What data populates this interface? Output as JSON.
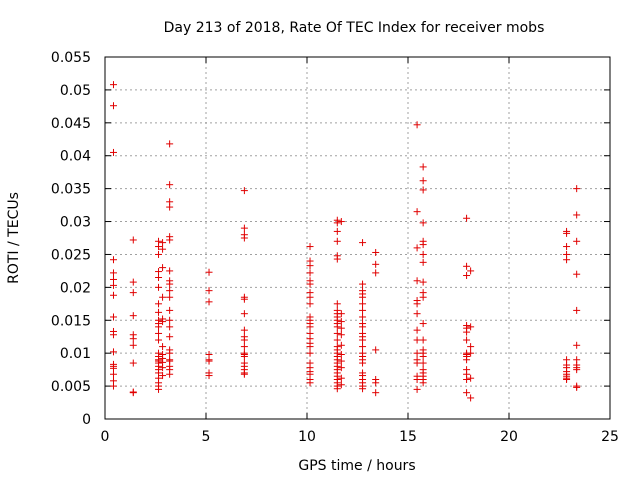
{
  "chart_data": {
    "type": "scatter",
    "title": "Day 213 of 2018, Rate Of TEC Index for receiver mobs",
    "xlabel": "GPS time / hours",
    "ylabel": "ROTI / TECUs",
    "xlim": [
      0,
      25
    ],
    "ylim": [
      0,
      0.055
    ],
    "x_ticks": [
      0,
      5,
      10,
      15,
      20,
      25
    ],
    "x_tick_labels": [
      "0",
      "5",
      "10",
      "15",
      "20",
      "25"
    ],
    "y_ticks": [
      0,
      0.005,
      0.01,
      0.015,
      0.02,
      0.025,
      0.03,
      0.035,
      0.04,
      0.045,
      0.05,
      0.055
    ],
    "y_tick_labels": [
      "0",
      "0.005",
      "0.01",
      "0.015",
      "0.02",
      "0.025",
      "0.03",
      "0.035",
      "0.04",
      "0.045",
      "0.05",
      "0.055"
    ],
    "grid": true,
    "marker": "+",
    "color": "#e00000",
    "series": [
      {
        "name": "ROTI",
        "points": [
          [
            0.42,
            0.0508
          ],
          [
            0.42,
            0.0476
          ],
          [
            0.42,
            0.0405
          ],
          [
            0.42,
            0.0242
          ],
          [
            0.42,
            0.0222
          ],
          [
            0.42,
            0.0212
          ],
          [
            0.42,
            0.0203
          ],
          [
            0.42,
            0.0188
          ],
          [
            0.42,
            0.0155
          ],
          [
            0.42,
            0.0133
          ],
          [
            0.42,
            0.0128
          ],
          [
            0.42,
            0.0102
          ],
          [
            0.42,
            0.0083
          ],
          [
            0.42,
            0.008
          ],
          [
            0.42,
            0.0077
          ],
          [
            0.42,
            0.0068
          ],
          [
            0.42,
            0.0058
          ],
          [
            0.42,
            0.005
          ],
          [
            1.4,
            0.0272
          ],
          [
            1.4,
            0.0208
          ],
          [
            1.4,
            0.0192
          ],
          [
            1.4,
            0.0157
          ],
          [
            1.4,
            0.0128
          ],
          [
            1.4,
            0.0122
          ],
          [
            1.4,
            0.0112
          ],
          [
            1.4,
            0.0085
          ],
          [
            1.4,
            0.0041
          ],
          [
            1.4,
            0.004
          ],
          [
            2.65,
            0.027
          ],
          [
            2.65,
            0.0262
          ],
          [
            2.65,
            0.025
          ],
          [
            2.65,
            0.0224
          ],
          [
            2.65,
            0.0215
          ],
          [
            2.65,
            0.02
          ],
          [
            2.65,
            0.0175
          ],
          [
            2.65,
            0.0162
          ],
          [
            2.65,
            0.015
          ],
          [
            2.65,
            0.0145
          ],
          [
            2.65,
            0.014
          ],
          [
            2.65,
            0.013
          ],
          [
            2.65,
            0.012
          ],
          [
            2.65,
            0.01
          ],
          [
            2.65,
            0.0095
          ],
          [
            2.65,
            0.009
          ],
          [
            2.65,
            0.0088
          ],
          [
            2.65,
            0.0085
          ],
          [
            2.65,
            0.008
          ],
          [
            2.65,
            0.0075
          ],
          [
            2.65,
            0.007
          ],
          [
            2.65,
            0.0062
          ],
          [
            2.65,
            0.0055
          ],
          [
            2.65,
            0.005
          ],
          [
            2.65,
            0.0045
          ],
          [
            2.85,
            0.0268
          ],
          [
            2.85,
            0.0258
          ],
          [
            2.85,
            0.023
          ],
          [
            2.85,
            0.0185
          ],
          [
            2.85,
            0.0152
          ],
          [
            2.85,
            0.0148
          ],
          [
            2.85,
            0.011
          ],
          [
            2.85,
            0.0098
          ],
          [
            2.85,
            0.0092
          ],
          [
            2.85,
            0.0086
          ],
          [
            2.85,
            0.0078
          ],
          [
            2.85,
            0.0066
          ],
          [
            3.2,
            0.0418
          ],
          [
            3.2,
            0.0356
          ],
          [
            3.2,
            0.033
          ],
          [
            3.2,
            0.0322
          ],
          [
            3.2,
            0.0277
          ],
          [
            3.2,
            0.0272
          ],
          [
            3.2,
            0.0225
          ],
          [
            3.2,
            0.021
          ],
          [
            3.2,
            0.0205
          ],
          [
            3.2,
            0.0195
          ],
          [
            3.2,
            0.0185
          ],
          [
            3.2,
            0.0165
          ],
          [
            3.2,
            0.015
          ],
          [
            3.2,
            0.014
          ],
          [
            3.2,
            0.0125
          ],
          [
            3.2,
            0.0105
          ],
          [
            3.2,
            0.01
          ],
          [
            3.2,
            0.009
          ],
          [
            3.2,
            0.0088
          ],
          [
            3.2,
            0.008
          ],
          [
            3.2,
            0.0075
          ],
          [
            3.2,
            0.0068
          ],
          [
            5.15,
            0.0223
          ],
          [
            5.15,
            0.0195
          ],
          [
            5.15,
            0.0178
          ],
          [
            5.15,
            0.0098
          ],
          [
            5.15,
            0.009
          ],
          [
            5.15,
            0.0088
          ],
          [
            5.15,
            0.007
          ],
          [
            5.15,
            0.0066
          ],
          [
            6.9,
            0.0347
          ],
          [
            6.9,
            0.029
          ],
          [
            6.9,
            0.028
          ],
          [
            6.9,
            0.0275
          ],
          [
            6.9,
            0.0185
          ],
          [
            6.9,
            0.0182
          ],
          [
            6.9,
            0.016
          ],
          [
            6.9,
            0.0135
          ],
          [
            6.9,
            0.0125
          ],
          [
            6.9,
            0.012
          ],
          [
            6.9,
            0.011
          ],
          [
            6.9,
            0.01
          ],
          [
            6.9,
            0.0098
          ],
          [
            6.9,
            0.0095
          ],
          [
            6.9,
            0.0085
          ],
          [
            6.9,
            0.008
          ],
          [
            6.9,
            0.0075
          ],
          [
            6.9,
            0.007
          ],
          [
            6.9,
            0.0068
          ],
          [
            10.15,
            0.0262
          ],
          [
            10.15,
            0.024
          ],
          [
            10.15,
            0.0233
          ],
          [
            10.15,
            0.0222
          ],
          [
            10.15,
            0.021
          ],
          [
            10.15,
            0.0205
          ],
          [
            10.15,
            0.0192
          ],
          [
            10.15,
            0.0185
          ],
          [
            10.15,
            0.0175
          ],
          [
            10.15,
            0.0155
          ],
          [
            10.15,
            0.015
          ],
          [
            10.15,
            0.0145
          ],
          [
            10.15,
            0.014
          ],
          [
            10.15,
            0.013
          ],
          [
            10.15,
            0.0122
          ],
          [
            10.15,
            0.0115
          ],
          [
            10.15,
            0.011
          ],
          [
            10.15,
            0.01
          ],
          [
            10.15,
            0.0085
          ],
          [
            10.15,
            0.0078
          ],
          [
            10.15,
            0.0072
          ],
          [
            10.15,
            0.0068
          ],
          [
            10.15,
            0.006
          ],
          [
            10.15,
            0.0055
          ],
          [
            11.5,
            0.0302
          ],
          [
            11.5,
            0.0298
          ],
          [
            11.5,
            0.0285
          ],
          [
            11.5,
            0.027
          ],
          [
            11.5,
            0.0248
          ],
          [
            11.5,
            0.0243
          ],
          [
            11.5,
            0.0175
          ],
          [
            11.5,
            0.0165
          ],
          [
            11.5,
            0.016
          ],
          [
            11.5,
            0.0155
          ],
          [
            11.5,
            0.015
          ],
          [
            11.5,
            0.0145
          ],
          [
            11.5,
            0.014
          ],
          [
            11.5,
            0.013
          ],
          [
            11.5,
            0.012
          ],
          [
            11.5,
            0.011
          ],
          [
            11.5,
            0.0105
          ],
          [
            11.5,
            0.01
          ],
          [
            11.5,
            0.0095
          ],
          [
            11.5,
            0.009
          ],
          [
            11.5,
            0.0085
          ],
          [
            11.5,
            0.008
          ],
          [
            11.5,
            0.0075
          ],
          [
            11.5,
            0.007
          ],
          [
            11.5,
            0.0065
          ],
          [
            11.5,
            0.006
          ],
          [
            11.5,
            0.0055
          ],
          [
            11.5,
            0.005
          ],
          [
            11.5,
            0.0046
          ],
          [
            11.7,
            0.03
          ],
          [
            11.7,
            0.016
          ],
          [
            11.7,
            0.0148
          ],
          [
            11.7,
            0.0138
          ],
          [
            11.7,
            0.0128
          ],
          [
            11.7,
            0.0112
          ],
          [
            11.7,
            0.0098
          ],
          [
            11.7,
            0.0088
          ],
          [
            11.7,
            0.0078
          ],
          [
            11.7,
            0.0062
          ],
          [
            11.7,
            0.0052
          ],
          [
            12.75,
            0.0268
          ],
          [
            12.75,
            0.0205
          ],
          [
            12.75,
            0.0195
          ],
          [
            12.75,
            0.019
          ],
          [
            12.75,
            0.0185
          ],
          [
            12.75,
            0.0175
          ],
          [
            12.75,
            0.0165
          ],
          [
            12.75,
            0.0155
          ],
          [
            12.75,
            0.0145
          ],
          [
            12.75,
            0.014
          ],
          [
            12.75,
            0.013
          ],
          [
            12.75,
            0.0125
          ],
          [
            12.75,
            0.012
          ],
          [
            12.75,
            0.011
          ],
          [
            12.75,
            0.01
          ],
          [
            12.75,
            0.0095
          ],
          [
            12.75,
            0.009
          ],
          [
            12.75,
            0.0085
          ],
          [
            12.75,
            0.007
          ],
          [
            12.75,
            0.0066
          ],
          [
            12.75,
            0.006
          ],
          [
            12.75,
            0.0055
          ],
          [
            12.75,
            0.005
          ],
          [
            12.75,
            0.0046
          ],
          [
            13.4,
            0.0253
          ],
          [
            13.4,
            0.0235
          ],
          [
            13.4,
            0.0222
          ],
          [
            13.4,
            0.0105
          ],
          [
            13.4,
            0.006
          ],
          [
            13.4,
            0.0055
          ],
          [
            13.4,
            0.004
          ],
          [
            15.45,
            0.0447
          ],
          [
            15.45,
            0.0315
          ],
          [
            15.45,
            0.026
          ],
          [
            15.45,
            0.021
          ],
          [
            15.45,
            0.018
          ],
          [
            15.45,
            0.0175
          ],
          [
            15.45,
            0.016
          ],
          [
            15.45,
            0.0135
          ],
          [
            15.45,
            0.012
          ],
          [
            15.45,
            0.01
          ],
          [
            15.45,
            0.009
          ],
          [
            15.45,
            0.0085
          ],
          [
            15.45,
            0.0065
          ],
          [
            15.45,
            0.006
          ],
          [
            15.45,
            0.0045
          ],
          [
            15.75,
            0.0383
          ],
          [
            15.75,
            0.0362
          ],
          [
            15.75,
            0.0348
          ],
          [
            15.75,
            0.0298
          ],
          [
            15.75,
            0.027
          ],
          [
            15.75,
            0.0265
          ],
          [
            15.75,
            0.025
          ],
          [
            15.75,
            0.0238
          ],
          [
            15.75,
            0.0208
          ],
          [
            15.75,
            0.0192
          ],
          [
            15.75,
            0.0185
          ],
          [
            15.75,
            0.0145
          ],
          [
            15.75,
            0.012
          ],
          [
            15.75,
            0.0105
          ],
          [
            15.75,
            0.01
          ],
          [
            15.75,
            0.0095
          ],
          [
            15.75,
            0.0085
          ],
          [
            15.75,
            0.0075
          ],
          [
            15.75,
            0.007
          ],
          [
            15.75,
            0.0065
          ],
          [
            15.75,
            0.006
          ],
          [
            15.75,
            0.0055
          ],
          [
            17.9,
            0.0305
          ],
          [
            17.9,
            0.0232
          ],
          [
            17.9,
            0.0218
          ],
          [
            17.9,
            0.0142
          ],
          [
            17.9,
            0.0138
          ],
          [
            17.9,
            0.0132
          ],
          [
            17.9,
            0.012
          ],
          [
            17.9,
            0.01
          ],
          [
            17.9,
            0.0098
          ],
          [
            17.9,
            0.0095
          ],
          [
            17.9,
            0.009
          ],
          [
            17.9,
            0.0075
          ],
          [
            17.9,
            0.0068
          ],
          [
            17.9,
            0.006
          ],
          [
            17.9,
            0.004
          ],
          [
            18.1,
            0.0225
          ],
          [
            18.1,
            0.014
          ],
          [
            18.1,
            0.011
          ],
          [
            18.1,
            0.01
          ],
          [
            18.1,
            0.0062
          ],
          [
            18.1,
            0.0032
          ],
          [
            22.85,
            0.0285
          ],
          [
            22.85,
            0.0282
          ],
          [
            22.85,
            0.0262
          ],
          [
            22.85,
            0.025
          ],
          [
            22.85,
            0.0242
          ],
          [
            22.85,
            0.009
          ],
          [
            22.85,
            0.0082
          ],
          [
            22.85,
            0.0078
          ],
          [
            22.85,
            0.0072
          ],
          [
            22.85,
            0.0068
          ],
          [
            22.85,
            0.0065
          ],
          [
            22.85,
            0.0062
          ],
          [
            22.85,
            0.006
          ],
          [
            23.35,
            0.035
          ],
          [
            23.35,
            0.031
          ],
          [
            23.35,
            0.027
          ],
          [
            23.35,
            0.022
          ],
          [
            23.35,
            0.0165
          ],
          [
            23.35,
            0.0112
          ],
          [
            23.35,
            0.009
          ],
          [
            23.35,
            0.0082
          ],
          [
            23.35,
            0.0078
          ],
          [
            23.35,
            0.0075
          ],
          [
            23.35,
            0.005
          ],
          [
            23.35,
            0.0048
          ]
        ]
      }
    ]
  }
}
